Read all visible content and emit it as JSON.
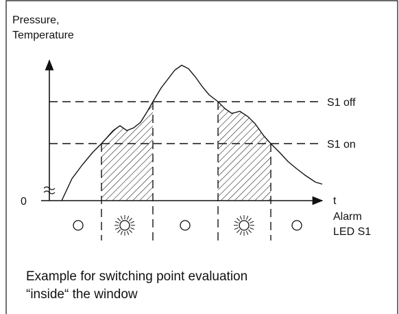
{
  "axis_labels": {
    "y": [
      "Pressure,",
      "Temperature"
    ],
    "origin": "0",
    "x": "t"
  },
  "thresholds": {
    "off": "S1 off",
    "on": "S1 on"
  },
  "led_label": [
    "Alarm",
    "LED S1"
  ],
  "caption": [
    "Example for switching point evaluation",
    "“inside“ the window"
  ]
}
